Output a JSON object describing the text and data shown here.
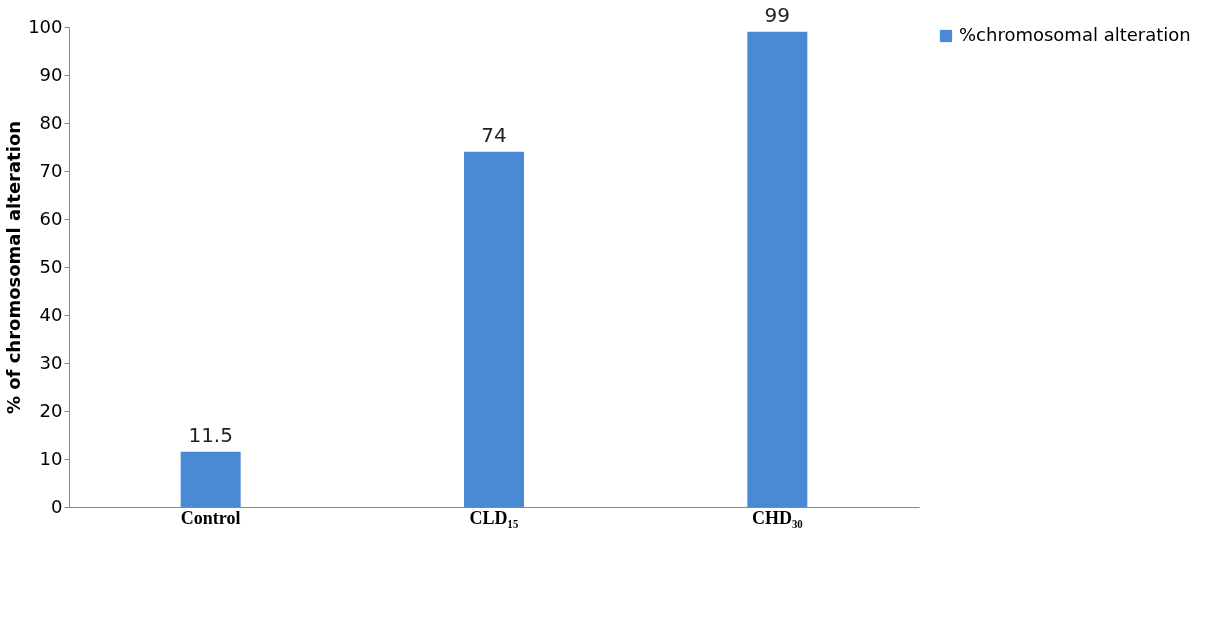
{
  "chart_data": {
    "type": "bar",
    "categories": [
      "Control",
      "CLD₁₅",
      "CHD₃₀"
    ],
    "series": [
      {
        "name": "%chromosomal alteration",
        "color": "#4a8ad4",
        "values": [
          11.5,
          74,
          99
        ]
      }
    ],
    "ylabel": "% of chromosomal alteration",
    "ylim": [
      0,
      100
    ],
    "yticks": [
      0,
      10,
      20,
      30,
      40,
      50,
      60,
      70,
      80,
      90,
      100
    ],
    "grid": false,
    "legend": "right",
    "data_labels": true
  }
}
